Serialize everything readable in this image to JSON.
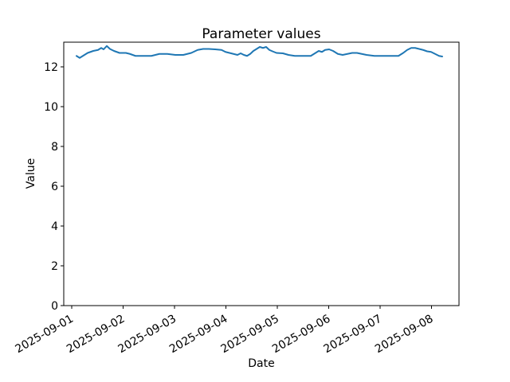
{
  "chart_data": {
    "type": "line",
    "title": "Parameter values",
    "xlabel": "Date",
    "ylabel": "Value",
    "x_tick_labels": [
      "2025-09-01",
      "2025-09-02",
      "2025-09-03",
      "2025-09-04",
      "2025-09-05",
      "2025-09-06",
      "2025-09-07",
      "2025-09-08"
    ],
    "x_tick_days": [
      0,
      1,
      2,
      3,
      4,
      5,
      6,
      7
    ],
    "y_ticks": [
      0,
      2,
      4,
      6,
      8,
      10,
      12
    ],
    "xlim_days": [
      -0.155,
      7.535
    ],
    "ylim": [
      0,
      13.24
    ],
    "grid": false,
    "legend_position": "none",
    "line_color": "#1f77b4",
    "axis_color": "#000000",
    "background_color": "#ffffff",
    "series": [
      {
        "points": [
          [
            0.093,
            12.55
          ],
          [
            0.155,
            12.45
          ],
          [
            0.217,
            12.55
          ],
          [
            0.31,
            12.7
          ],
          [
            0.419,
            12.8
          ],
          [
            0.512,
            12.85
          ],
          [
            0.574,
            12.95
          ],
          [
            0.62,
            12.88
          ],
          [
            0.682,
            13.05
          ],
          [
            0.744,
            12.9
          ],
          [
            0.822,
            12.8
          ],
          [
            0.93,
            12.7
          ],
          [
            1.054,
            12.7
          ],
          [
            1.132,
            12.65
          ],
          [
            1.24,
            12.55
          ],
          [
            1.395,
            12.55
          ],
          [
            1.55,
            12.55
          ],
          [
            1.705,
            12.65
          ],
          [
            1.86,
            12.65
          ],
          [
            2.016,
            12.6
          ],
          [
            2.171,
            12.6
          ],
          [
            2.326,
            12.7
          ],
          [
            2.45,
            12.85
          ],
          [
            2.558,
            12.9
          ],
          [
            2.667,
            12.9
          ],
          [
            2.791,
            12.88
          ],
          [
            2.915,
            12.85
          ],
          [
            2.992,
            12.75
          ],
          [
            3.07,
            12.7
          ],
          [
            3.147,
            12.65
          ],
          [
            3.225,
            12.6
          ],
          [
            3.287,
            12.68
          ],
          [
            3.349,
            12.6
          ],
          [
            3.411,
            12.55
          ],
          [
            3.473,
            12.65
          ],
          [
            3.535,
            12.8
          ],
          [
            3.597,
            12.9
          ],
          [
            3.659,
            13.0
          ],
          [
            3.721,
            12.95
          ],
          [
            3.783,
            13.0
          ],
          [
            3.845,
            12.85
          ],
          [
            3.907,
            12.78
          ],
          [
            3.984,
            12.7
          ],
          [
            4.109,
            12.68
          ],
          [
            4.217,
            12.6
          ],
          [
            4.341,
            12.55
          ],
          [
            4.496,
            12.55
          ],
          [
            4.651,
            12.55
          ],
          [
            4.744,
            12.7
          ],
          [
            4.806,
            12.8
          ],
          [
            4.868,
            12.75
          ],
          [
            4.93,
            12.85
          ],
          [
            5.008,
            12.88
          ],
          [
            5.085,
            12.8
          ],
          [
            5.178,
            12.65
          ],
          [
            5.271,
            12.6
          ],
          [
            5.364,
            12.65
          ],
          [
            5.457,
            12.7
          ],
          [
            5.55,
            12.7
          ],
          [
            5.643,
            12.65
          ],
          [
            5.736,
            12.6
          ],
          [
            5.891,
            12.55
          ],
          [
            6.046,
            12.55
          ],
          [
            6.202,
            12.55
          ],
          [
            6.357,
            12.55
          ],
          [
            6.45,
            12.7
          ],
          [
            6.527,
            12.85
          ],
          [
            6.605,
            12.95
          ],
          [
            6.682,
            12.95
          ],
          [
            6.76,
            12.9
          ],
          [
            6.837,
            12.85
          ],
          [
            6.915,
            12.78
          ],
          [
            6.992,
            12.75
          ],
          [
            7.07,
            12.65
          ],
          [
            7.147,
            12.55
          ],
          [
            7.209,
            12.52
          ]
        ]
      }
    ]
  }
}
